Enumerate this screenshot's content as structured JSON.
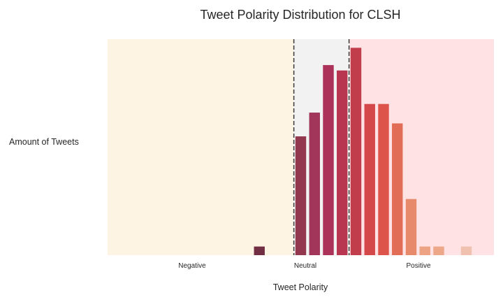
{
  "chart_data": {
    "type": "bar",
    "title": "Tweet Polarity Distribution for CLSH",
    "xlabel": "Tweet Polarity",
    "ylabel": "Amount of Tweets",
    "region_labels": [
      "Negative",
      "Neutral",
      "Positive"
    ],
    "region_colors": {
      "negative": "#fdf4e4",
      "neutral": "#f2f2f2",
      "positive": "#ffe2e3"
    },
    "neutral_bounds": [
      -0.05,
      0.05
    ],
    "xlim": [
      -0.3875,
      0.3125
    ],
    "ylim": [
      0,
      100
    ],
    "grid": false,
    "bins": [
      {
        "x": -0.1125,
        "value": 4,
        "color": "#722e42"
      },
      {
        "x": -0.0625,
        "value": 0,
        "color": "#86344a"
      },
      {
        "x": -0.0375,
        "value": 55,
        "color": "#93374e"
      },
      {
        "x": -0.0125,
        "value": 66,
        "color": "#a1355a"
      },
      {
        "x": 0.0125,
        "value": 88,
        "color": "#ad325a"
      },
      {
        "x": 0.0375,
        "value": 85.5,
        "color": "#b8364f"
      },
      {
        "x": 0.0625,
        "value": 96,
        "color": "#c23d4c"
      },
      {
        "x": 0.0875,
        "value": 70,
        "color": "#d5484a"
      },
      {
        "x": 0.1125,
        "value": 70,
        "color": "#dd554a"
      },
      {
        "x": 0.1375,
        "value": 61,
        "color": "#e26d56"
      },
      {
        "x": 0.1625,
        "value": 26,
        "color": "#e78a6c"
      },
      {
        "x": 0.1875,
        "value": 4,
        "color": "#eda283"
      },
      {
        "x": 0.2125,
        "value": 4,
        "color": "#eda789"
      },
      {
        "x": 0.2625,
        "value": 4,
        "color": "#f0c1af"
      }
    ]
  }
}
